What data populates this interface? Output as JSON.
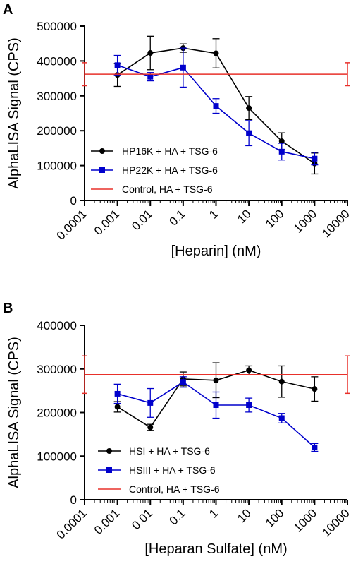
{
  "chart_data": [
    {
      "panel": "A",
      "type": "line",
      "xscale": "log",
      "xlim": [
        0.0001,
        10000
      ],
      "ylim": [
        0,
        500000
      ],
      "xticks": [
        "0.0001",
        "0.001",
        "0.01",
        "0.1",
        "1",
        "10",
        "100",
        "1000",
        "10000"
      ],
      "yticks": [
        "0",
        "100000",
        "200000",
        "300000",
        "400000",
        "500000"
      ],
      "xlabel": "[Heparin] (nM)",
      "ylabel": "AlphaLISA Signal (CPS)",
      "legend_position": "lower-left",
      "series": [
        {
          "name": "HP16K + HA + TSG-6",
          "color": "#000000",
          "marker": "circle",
          "x": [
            0.001,
            0.01,
            0.1,
            1,
            10,
            100,
            1000
          ],
          "y": [
            360000,
            423000,
            437000,
            422000,
            265000,
            170000,
            106000
          ],
          "err": [
            33000,
            48000,
            12000,
            42000,
            33000,
            24000,
            30000
          ]
        },
        {
          "name": "HP22K + HA + TSG-6",
          "color": "#0000cc",
          "marker": "square",
          "x": [
            0.001,
            0.01,
            0.1,
            1,
            10,
            100,
            1000
          ],
          "y": [
            388000,
            355000,
            381000,
            271000,
            193000,
            140000,
            120000
          ],
          "err": [
            28000,
            12000,
            56000,
            21000,
            36000,
            24000,
            18000
          ]
        },
        {
          "name": "Control, HA + TSG-6",
          "color": "#e8302a",
          "type": "hline",
          "y": 362000,
          "err": 33000
        }
      ]
    },
    {
      "panel": "B",
      "type": "line",
      "xscale": "log",
      "xlim": [
        0.0001,
        10000
      ],
      "ylim": [
        0,
        400000
      ],
      "xticks": [
        "0.0001",
        "0.001",
        "0.01",
        "0.1",
        "1",
        "10",
        "100",
        "1000",
        "10000"
      ],
      "yticks": [
        "0",
        "100000",
        "200000",
        "300000",
        "400000"
      ],
      "xlabel": "[Heparan Sulfate] (nM)",
      "ylabel": "AlphaLISA Signal (CPS)",
      "legend_position": "lower-left",
      "series": [
        {
          "name": "HSI + HA + TSG-6",
          "color": "#000000",
          "marker": "circle",
          "x": [
            0.001,
            0.01,
            0.1,
            1,
            10,
            100,
            1000
          ],
          "y": [
            213000,
            166000,
            277000,
            274000,
            297000,
            271000,
            254000
          ],
          "err": [
            12000,
            7000,
            16000,
            40000,
            10000,
            36000,
            28000
          ]
        },
        {
          "name": "HSIII + HA + TSG-6",
          "color": "#0000cc",
          "marker": "square",
          "x": [
            0.001,
            0.01,
            0.1,
            1,
            10,
            100,
            1000
          ],
          "y": [
            243000,
            222000,
            270000,
            217000,
            217000,
            187000,
            120000
          ],
          "err": [
            22000,
            33000,
            12000,
            30000,
            16000,
            11000,
            9000
          ]
        },
        {
          "name": "Control, HA + TSG-6",
          "color": "#e8302a",
          "type": "hline",
          "y": 287000,
          "err": 43000
        }
      ]
    }
  ]
}
